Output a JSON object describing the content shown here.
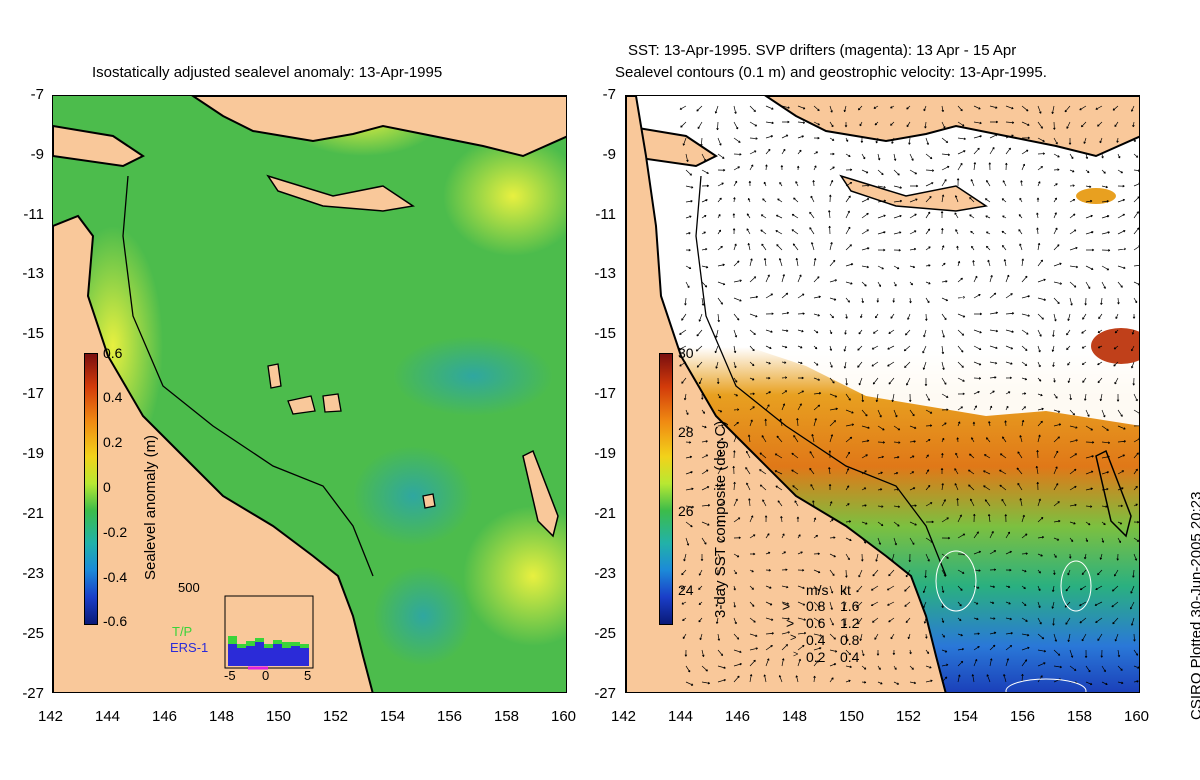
{
  "left_panel": {
    "title": "Isostatically adjusted sealevel anomaly: 13-Apr-1995",
    "colorbar_label": "Sealevel anomaly (m)",
    "colorbar_ticks": [
      "0.6",
      "0.4",
      "0.2",
      "0",
      "-0.2",
      "-0.4",
      "-0.6"
    ],
    "histogram": {
      "ymax_label": "500",
      "xticks": [
        "-5",
        "0",
        "5"
      ],
      "legend": [
        "T/P",
        "ERS-1"
      ]
    }
  },
  "right_panel": {
    "title_line1": "SST: 13-Apr-1995. SVP drifters (magenta): 13 Apr - 15 Apr",
    "title_line2": "Sealevel contours (0.1 m) and geostrophic velocity: 13-Apr-1995.",
    "colorbar_label": "3-day SST composite (deg C)",
    "colorbar_ticks": [
      "30",
      "28",
      "26",
      "24"
    ],
    "velocity_legend": {
      "header_ms": "m/s",
      "header_kt": "kt",
      "rows": [
        {
          "ms": "0.8",
          "kt": "1.6"
        },
        {
          "ms": "0.6",
          "kt": "1.2"
        },
        {
          "ms": "0.4",
          "kt": "0.8"
        },
        {
          "ms": "0.2",
          "kt": "0.4"
        }
      ]
    }
  },
  "y_ticks": [
    "-7",
    "-9",
    "-11",
    "-13",
    "-15",
    "-17",
    "-19",
    "-21",
    "-23",
    "-25",
    "-27"
  ],
  "x_ticks": [
    "142",
    "144",
    "146",
    "148",
    "150",
    "152",
    "154",
    "156",
    "158",
    "160"
  ],
  "credit": "CSIRO Plotted 30-Jun-2005 20:23",
  "colors": {
    "land": "#f9c89a",
    "ocean_green": "#52c24a",
    "ocean_teal": "#3fae7a",
    "ocean_yellow": "#c8e838",
    "sst_white": "#ffffff",
    "sst_orange": "#ef9a1c",
    "sst_blue": "#2d6fd4"
  }
}
